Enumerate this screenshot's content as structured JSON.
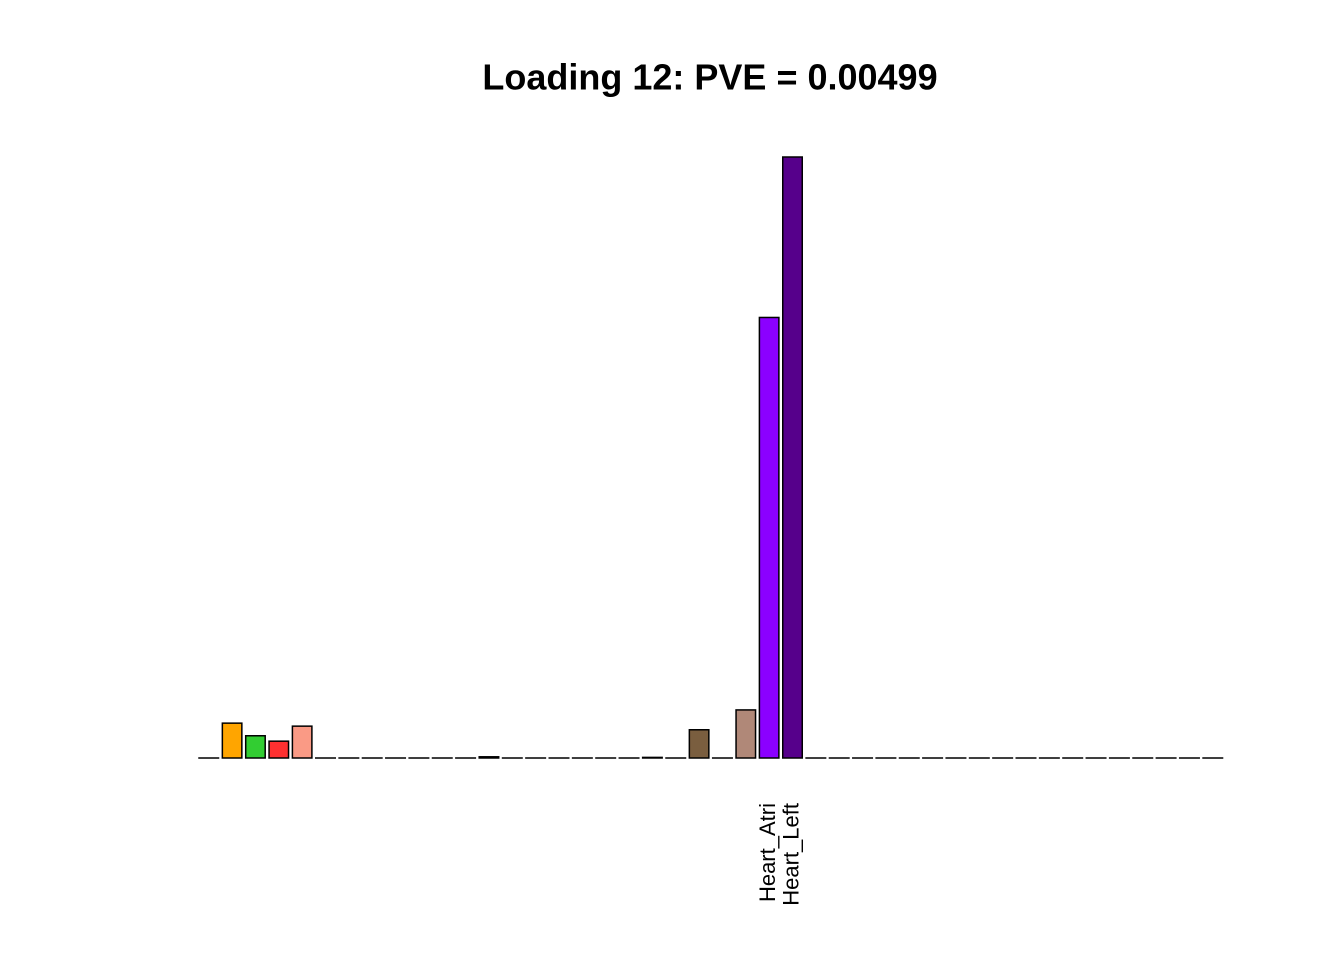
{
  "chart_data": {
    "type": "bar",
    "title": "Loading 12: PVE = 0.00499",
    "categories": [
      null,
      null,
      null,
      null,
      null,
      null,
      null,
      null,
      null,
      null,
      null,
      null,
      null,
      null,
      null,
      null,
      null,
      null,
      null,
      null,
      null,
      null,
      null,
      null,
      "Heart_Atri",
      "Heart_Left",
      null,
      null,
      null,
      null,
      null,
      null,
      null,
      null,
      null,
      null,
      null,
      null,
      null,
      null,
      null,
      null,
      null,
      null
    ],
    "values": [
      0,
      0.058,
      0.037,
      0.028,
      0.053,
      0,
      0,
      0,
      0,
      0,
      0,
      0,
      0.002,
      0,
      0,
      0,
      0,
      0,
      0,
      0.001,
      0,
      0.047,
      0,
      0.08,
      0.733,
      1,
      0,
      0,
      0,
      0,
      0,
      0,
      0,
      0,
      0,
      0,
      0,
      0,
      0,
      0,
      0,
      0,
      0,
      0
    ],
    "colors": [
      "#ffd700",
      "#ffa500",
      "#32cd32",
      "#ff3030",
      "#fa9a85",
      "#888888",
      "#888888",
      "#888888",
      "#888888",
      "#888888",
      "#888888",
      "#888888",
      "#888888",
      "#888888",
      "#888888",
      "#888888",
      "#888888",
      "#888888",
      "#888888",
      "#888888",
      "#888888",
      "#7a5e3f",
      "#888888",
      "#b08878",
      "#8b00ff",
      "#56008b",
      "#888888",
      "#888888",
      "#888888",
      "#888888",
      "#888888",
      "#888888",
      "#888888",
      "#888888",
      "#888888",
      "#888888",
      "#888888",
      "#888888",
      "#888888",
      "#888888",
      "#888888",
      "#888888",
      "#888888",
      "#888888"
    ],
    "ylim": [
      0,
      1.04
    ]
  }
}
